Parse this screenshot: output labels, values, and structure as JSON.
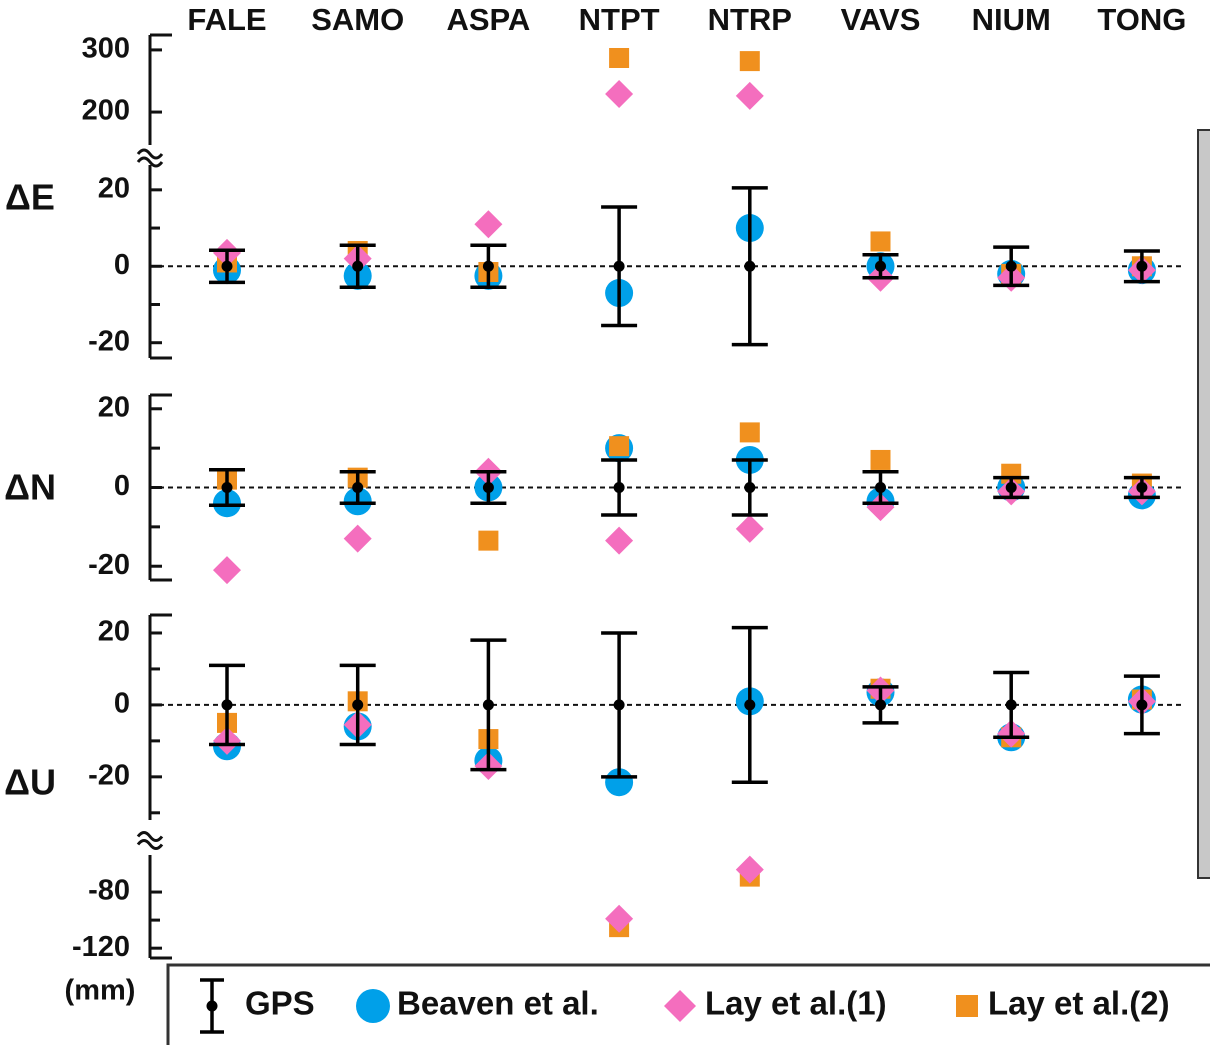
{
  "chart_data": {
    "type": "errorbar",
    "categories": [
      "FALE",
      "SAMO",
      "ASPA",
      "NTPT",
      "NTRP",
      "VAVS",
      "NIUM",
      "TONG"
    ],
    "unit_label": "(mm)",
    "panels": [
      {
        "label": "ΔE",
        "zero_line": true,
        "segments": [
          {
            "ylim": [
              -24,
              26.5
            ],
            "yticks": [
              -20,
              0,
              20
            ],
            "minor_ticks": [
              -10,
              10
            ]
          },
          {
            "ylim": [
              147,
              324
            ],
            "yticks": [
              200,
              300
            ]
          }
        ]
      },
      {
        "label": "ΔN",
        "zero_line": true,
        "segments": [
          {
            "ylim": [
              -23.5,
              23.5
            ],
            "yticks": [
              -20,
              0,
              20
            ],
            "minor_ticks": [
              -10,
              10
            ]
          }
        ]
      },
      {
        "label": "ΔU",
        "zero_line": true,
        "segments": [
          {
            "ylim": [
              -32,
              25
            ],
            "yticks": [
              -20,
              0,
              20
            ],
            "minor_ticks": [
              -30,
              -10,
              10
            ]
          },
          {
            "ylim": [
              -127,
              -53.6
            ],
            "yticks": [
              -80,
              -120
            ],
            "minor_ticks": [
              -100
            ]
          }
        ]
      }
    ],
    "series": [
      {
        "name": "GPS",
        "color": "#000000",
        "marker": "errorbar",
        "values": [
          [
            0,
            0,
            0,
            0,
            0,
            0,
            0,
            0
          ],
          [
            0,
            0,
            0,
            0,
            0,
            0,
            0,
            0
          ],
          [
            0,
            0,
            0,
            0,
            0,
            0,
            0,
            0
          ]
        ],
        "errors": [
          [
            4.2,
            5.5,
            5.5,
            15.5,
            20.5,
            3,
            5,
            4
          ],
          [
            4.5,
            4,
            4,
            7,
            7,
            4,
            2.5,
            2.5
          ],
          [
            11,
            11,
            18,
            20,
            21.5,
            5,
            9,
            8
          ]
        ]
      },
      {
        "name": "Beaven et al.",
        "color": "#00a0e9",
        "marker": "circle",
        "values": [
          [
            -1,
            -2.5,
            -2.5,
            -7,
            10,
            0,
            -2,
            -1
          ],
          [
            -4,
            -3.5,
            0,
            10,
            7,
            -3.5,
            0,
            -2
          ],
          [
            -11.5,
            -6,
            -15.5,
            -21.5,
            1,
            3.5,
            -9,
            1.5
          ]
        ]
      },
      {
        "name": "Lay et al.(1)",
        "color": "#f46ebe",
        "marker": "diamond",
        "values": [
          [
            3.5,
            2,
            11,
            229,
            226,
            -3,
            -3,
            -1
          ],
          [
            -21,
            -13,
            4,
            -13.5,
            -10.5,
            -5,
            -1,
            -1
          ],
          [
            -10,
            -5.5,
            -17,
            -99,
            -64,
            4,
            -8,
            1
          ]
        ]
      },
      {
        "name": "Lay et al.(2)",
        "color": "#f0901e",
        "marker": "square",
        "values": [
          [
            1,
            4,
            -1.5,
            287,
            282,
            6.5,
            -2,
            0
          ],
          [
            2,
            2.5,
            -13.5,
            10.5,
            14,
            7,
            3.5,
            1
          ],
          [
            -5,
            1,
            -9.5,
            -105,
            -69,
            4.5,
            -9,
            1.5
          ]
        ]
      }
    ]
  }
}
